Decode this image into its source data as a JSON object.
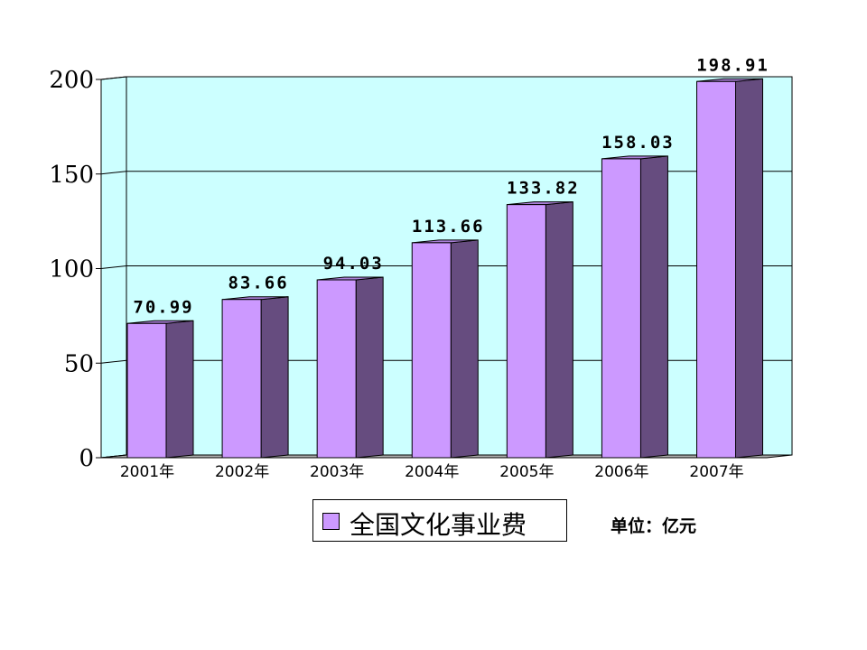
{
  "chart_data": {
    "type": "bar",
    "categories": [
      "2001年",
      "2002年",
      "2003年",
      "2004年",
      "2005年",
      "2006年",
      "2007年"
    ],
    "series": [
      {
        "name": "全国文化事业费",
        "values": [
          70.99,
          83.66,
          94.03,
          113.66,
          133.82,
          158.03,
          198.91
        ]
      }
    ],
    "value_labels": [
      "70.99",
      "83.66",
      "94.03",
      "113.66",
      "133.82",
      "158.03",
      "198.91"
    ],
    "ylim": [
      0,
      200
    ],
    "yticks": [
      0,
      50,
      100,
      150,
      200
    ],
    "grid": true,
    "legend_position": "bottom",
    "unit": "单位：亿元",
    "colors": {
      "plot_background": "#ccffff",
      "bar_front": "#cc99ff",
      "bar_side": "#664c7f",
      "bar_top": "#a87fd6",
      "gridline": "#000000"
    }
  },
  "legend": {
    "label": "全国文化事业费"
  },
  "unit_note": "单位：亿元"
}
